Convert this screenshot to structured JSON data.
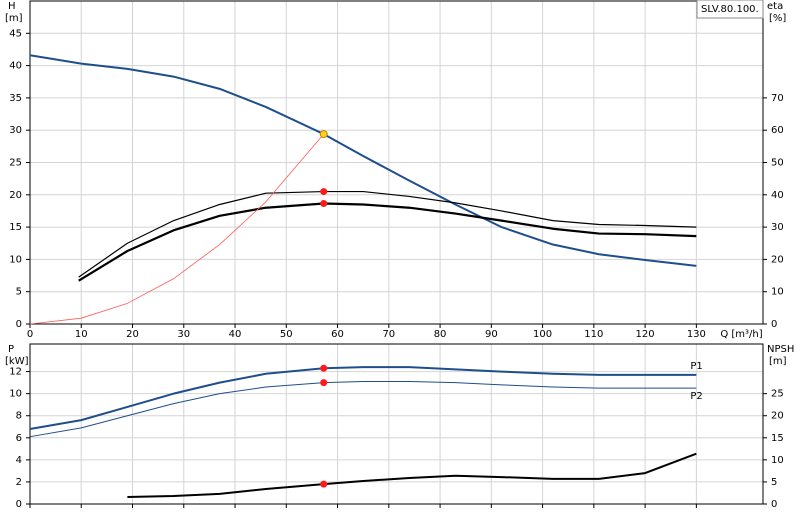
{
  "chart_data": [
    {
      "type": "line",
      "title": "SLV.80.100.",
      "ylabel": "H",
      "ylabel_unit": "[m]",
      "y2label": "eta",
      "y2label_unit": "[%]",
      "xlabel": "Q [m³/h]",
      "xlim": [
        0,
        143
      ],
      "xticks": [
        0,
        10,
        20,
        30,
        40,
        50,
        60,
        70,
        80,
        90,
        100,
        110,
        120,
        130
      ],
      "ylim": [
        0,
        50
      ],
      "yticks": [
        0,
        5,
        10,
        15,
        20,
        25,
        30,
        35,
        40,
        45
      ],
      "y2lim": [
        0,
        100
      ],
      "y2ticks": [
        0,
        10,
        20,
        30,
        40,
        50,
        60,
        70
      ],
      "grid": true,
      "series": [
        {
          "color": "#1f4e8c",
          "width": 2,
          "axis": "y",
          "x": [
            0,
            10,
            19,
            28,
            37,
            46,
            57.3,
            65,
            74,
            83,
            92,
            102,
            111,
            120,
            130
          ],
          "values": [
            41.6,
            40.3,
            39.5,
            38.3,
            36.4,
            33.6,
            29.4,
            26,
            22.2,
            18.5,
            15,
            12.3,
            10.8,
            9.9,
            9.0
          ]
        },
        {
          "color": "#000000",
          "width": 1.2,
          "axis": "y2",
          "x": [
            9.5,
            19,
            28,
            37,
            46,
            57.3,
            65,
            74,
            83,
            92,
            102,
            111,
            120,
            130
          ],
          "values": [
            14.5,
            25,
            32,
            37,
            40.5,
            41,
            41,
            39.5,
            37.5,
            35,
            32,
            30.8,
            30.5,
            30
          ]
        },
        {
          "color": "#000000",
          "width": 2.2,
          "axis": "y2",
          "x": [
            9.5,
            19,
            28,
            37,
            46,
            57.3,
            65,
            74,
            83,
            92,
            102,
            111,
            120,
            130
          ],
          "values": [
            13.4,
            22.6,
            29,
            33.5,
            36,
            37.3,
            37,
            36,
            34.2,
            32,
            29.5,
            28,
            27.8,
            27.2
          ]
        },
        {
          "color": "#ff5a5a",
          "width": 0.8,
          "axis": "y",
          "x": [
            0,
            10,
            19,
            28,
            37,
            46,
            57.3
          ],
          "values": [
            0,
            0.9,
            3.2,
            7.0,
            12.3,
            18.9,
            29.4
          ]
        }
      ],
      "markers": [
        {
          "x": 57.3,
          "y": 29.4,
          "axis": "y",
          "color": "#ffd21f"
        },
        {
          "x": 57.3,
          "y": 41,
          "axis": "y2",
          "color": "#ff1a1a"
        },
        {
          "x": 57.3,
          "y": 37.3,
          "axis": "y2",
          "color": "#ff1a1a"
        }
      ]
    },
    {
      "type": "line",
      "ylabel": "P",
      "ylabel_unit": "[kW]",
      "y2label": "NPSH",
      "y2label_unit": "[m]",
      "xlim": [
        0,
        143
      ],
      "xticks": [
        0,
        10,
        20,
        30,
        40,
        50,
        60,
        70,
        80,
        90,
        100,
        110,
        120,
        130
      ],
      "show_xtick_labels": false,
      "ylim": [
        0,
        14.5
      ],
      "yticks": [
        0,
        2,
        4,
        6,
        8,
        10,
        12
      ],
      "y2lim": [
        0,
        36.25
      ],
      "y2ticks": [
        0,
        5,
        10,
        15,
        20,
        25
      ],
      "grid": true,
      "series": [
        {
          "name": "P1",
          "color": "#1f4e8c",
          "width": 2,
          "axis": "y",
          "x": [
            0,
            10,
            19,
            28,
            37,
            46,
            57.3,
            65,
            74,
            83,
            92,
            102,
            111,
            120,
            130
          ],
          "values": [
            6.8,
            7.6,
            8.8,
            10,
            11,
            11.8,
            12.3,
            12.4,
            12.4,
            12.2,
            12,
            11.8,
            11.7,
            11.7,
            11.7
          ]
        },
        {
          "name": "P2",
          "color": "#1f4e8c",
          "width": 1,
          "axis": "y",
          "x": [
            0,
            10,
            19,
            28,
            37,
            46,
            57.3,
            65,
            74,
            83,
            92,
            102,
            111,
            120,
            130
          ],
          "values": [
            6.1,
            6.9,
            8,
            9.1,
            10,
            10.6,
            11,
            11.1,
            11.1,
            11,
            10.8,
            10.6,
            10.5,
            10.5,
            10.5
          ]
        },
        {
          "color": "#000000",
          "width": 2,
          "axis": "y2",
          "x": [
            19,
            28,
            37,
            46,
            57.3,
            65,
            74,
            83,
            92,
            102,
            111,
            120,
            130
          ],
          "values": [
            1.6,
            1.8,
            2.3,
            3.4,
            4.5,
            5.2,
            5.9,
            6.4,
            6.1,
            5.7,
            5.7,
            7.0,
            11.4
          ]
        }
      ],
      "markers": [
        {
          "x": 57.3,
          "y": 12.3,
          "axis": "y",
          "color": "#ff1a1a"
        },
        {
          "x": 57.3,
          "y": 11.0,
          "axis": "y",
          "color": "#ff1a1a"
        },
        {
          "x": 57.3,
          "y": 4.5,
          "axis": "y2",
          "color": "#ff1a1a"
        }
      ]
    }
  ]
}
